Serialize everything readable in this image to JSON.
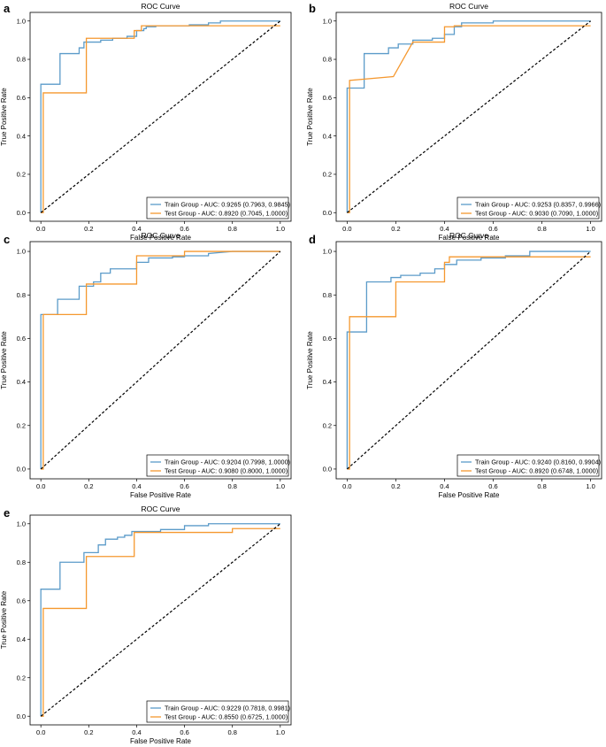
{
  "chart_data": [
    {
      "panel": "a",
      "type": "line",
      "title": "ROC Curve",
      "xlabel": "False Positive Rate",
      "ylabel": "True Positive Rate",
      "xlim": [
        0,
        1
      ],
      "ylim": [
        0,
        1
      ],
      "ticks": [
        "0.0",
        "0.2",
        "0.4",
        "0.6",
        "0.8",
        "1.0"
      ],
      "legend_position": "lower-right",
      "series": [
        {
          "name": "Train Group",
          "label": "Train Group - AUC: 0.9265 (0.7963, 0.9845)",
          "color": "#5b9bc9",
          "x": [
            0,
            0,
            0.08,
            0.08,
            0.16,
            0.16,
            0.18,
            0.18,
            0.25,
            0.25,
            0.3,
            0.3,
            0.36,
            0.36,
            0.4,
            0.4,
            0.43,
            0.43,
            0.44,
            0.44,
            0.48,
            0.48,
            0.62,
            0.62,
            0.7,
            0.7,
            0.75,
            0.75,
            1.0
          ],
          "y": [
            0,
            0.67,
            0.67,
            0.83,
            0.83,
            0.86,
            0.86,
            0.89,
            0.89,
            0.9,
            0.9,
            0.91,
            0.91,
            0.92,
            0.92,
            0.95,
            0.95,
            0.96,
            0.96,
            0.97,
            0.97,
            0.975,
            0.975,
            0.98,
            0.98,
            0.99,
            0.99,
            1.0,
            1.0
          ]
        },
        {
          "name": "Test Group",
          "label": "Test Group - AUC: 0.8920 (0.7045, 1.0000)",
          "color": "#f5982f",
          "x": [
            0,
            0.01,
            0.01,
            0.19,
            0.19,
            0.39,
            0.39,
            0.42,
            0.42,
            1.0
          ],
          "y": [
            0,
            0,
            0.625,
            0.625,
            0.91,
            0.91,
            0.95,
            0.95,
            0.975,
            0.975
          ]
        },
        {
          "name": "Chance",
          "label": "",
          "color": "#000000",
          "dashed": true,
          "x": [
            0,
            1
          ],
          "y": [
            0,
            1
          ]
        }
      ]
    },
    {
      "panel": "b",
      "type": "line",
      "title": "ROC Curve",
      "xlabel": "False Positive Rate",
      "ylabel": "True Positive Rate",
      "xlim": [
        0,
        1
      ],
      "ylim": [
        0,
        1
      ],
      "ticks": [
        "0.0",
        "0.2",
        "0.4",
        "0.6",
        "0.8",
        "1.0"
      ],
      "legend_position": "lower-right",
      "series": [
        {
          "name": "Train Group",
          "label": "Train Group - AUC: 0.9253 (0.8357, 0.9966)",
          "color": "#5b9bc9",
          "x": [
            0,
            0,
            0.07,
            0.07,
            0.13,
            0.13,
            0.17,
            0.17,
            0.21,
            0.21,
            0.27,
            0.27,
            0.35,
            0.35,
            0.4,
            0.4,
            0.44,
            0.44,
            0.47,
            0.47,
            0.6,
            0.6,
            0.95,
            1.0
          ],
          "y": [
            0,
            0.65,
            0.65,
            0.83,
            0.83,
            0.83,
            0.83,
            0.86,
            0.86,
            0.88,
            0.88,
            0.9,
            0.9,
            0.91,
            0.91,
            0.93,
            0.93,
            0.97,
            0.97,
            0.99,
            0.99,
            1.0,
            1.0,
            1.0
          ]
        },
        {
          "name": "Test Group",
          "label": "Test Group - AUC: 0.9030 (0.7090, 1.0000)",
          "color": "#f5982f",
          "x": [
            0,
            0.01,
            0.01,
            0.19,
            0.19,
            0.27,
            0.27,
            0.4,
            0.4,
            0.44,
            0.44,
            1.0
          ],
          "y": [
            0,
            0,
            0.69,
            0.71,
            0.71,
            0.89,
            0.89,
            0.89,
            0.97,
            0.97,
            0.975,
            0.975
          ]
        },
        {
          "name": "Chance",
          "label": "",
          "color": "#000000",
          "dashed": true,
          "x": [
            0,
            1
          ],
          "y": [
            0,
            1
          ]
        }
      ]
    },
    {
      "panel": "c",
      "type": "line",
      "title": "ROC Curve",
      "xlabel": "False Positive Rate",
      "ylabel": "True Positive Rate",
      "xlim": [
        0,
        1
      ],
      "ylim": [
        0,
        1
      ],
      "ticks": [
        "0.0",
        "0.2",
        "0.4",
        "0.6",
        "0.8",
        "1.0"
      ],
      "legend_position": "lower-right",
      "series": [
        {
          "name": "Train Group",
          "label": "Train Group - AUC: 0.9204 (0.7998, 1.0000)",
          "color": "#5b9bc9",
          "x": [
            0,
            0,
            0.07,
            0.07,
            0.16,
            0.16,
            0.22,
            0.22,
            0.25,
            0.25,
            0.29,
            0.29,
            0.4,
            0.4,
            0.45,
            0.45,
            0.55,
            0.55,
            0.6,
            0.6,
            0.7,
            0.7,
            0.8,
            1.0
          ],
          "y": [
            0,
            0.71,
            0.71,
            0.78,
            0.78,
            0.84,
            0.84,
            0.86,
            0.86,
            0.9,
            0.9,
            0.92,
            0.92,
            0.95,
            0.95,
            0.97,
            0.97,
            0.975,
            0.975,
            0.98,
            0.98,
            0.99,
            1.0,
            1.0
          ]
        },
        {
          "name": "Test Group",
          "label": "Test Group - AUC: 0.9080 (0.8000, 1.0000)",
          "color": "#f5982f",
          "x": [
            0,
            0.01,
            0.01,
            0.19,
            0.19,
            0.4,
            0.4,
            0.6,
            0.6,
            1.0
          ],
          "y": [
            0,
            0,
            0.71,
            0.71,
            0.85,
            0.85,
            0.98,
            0.98,
            1.0,
            1.0
          ]
        },
        {
          "name": "Chance",
          "label": "",
          "color": "#000000",
          "dashed": true,
          "x": [
            0,
            1
          ],
          "y": [
            0,
            1
          ]
        }
      ]
    },
    {
      "panel": "d",
      "type": "line",
      "title": "ROC Curve",
      "xlabel": "False Positive Rate",
      "ylabel": "True Positive Rate",
      "xlim": [
        0,
        1
      ],
      "ylim": [
        0,
        1
      ],
      "ticks": [
        "0.0",
        "0.2",
        "0.4",
        "0.6",
        "0.8",
        "1.0"
      ],
      "legend_position": "lower-right",
      "series": [
        {
          "name": "Train Group",
          "label": "Train Group - AUC: 0.9240 (0.8160, 0.9904)",
          "color": "#5b9bc9",
          "x": [
            0,
            0,
            0.08,
            0.08,
            0.18,
            0.18,
            0.22,
            0.22,
            0.3,
            0.3,
            0.36,
            0.36,
            0.4,
            0.4,
            0.45,
            0.45,
            0.55,
            0.55,
            0.65,
            0.65,
            0.75,
            0.75,
            1.0
          ],
          "y": [
            0,
            0.63,
            0.63,
            0.86,
            0.86,
            0.88,
            0.88,
            0.89,
            0.89,
            0.9,
            0.9,
            0.92,
            0.92,
            0.94,
            0.94,
            0.96,
            0.96,
            0.97,
            0.97,
            0.98,
            0.98,
            1.0,
            1.0
          ]
        },
        {
          "name": "Test Group",
          "label": "Test Group - AUC: 0.8920 (0.6748, 1.0000)",
          "color": "#f5982f",
          "x": [
            0,
            0.01,
            0.01,
            0.2,
            0.2,
            0.4,
            0.4,
            0.42,
            0.42,
            1.0
          ],
          "y": [
            0,
            0,
            0.7,
            0.7,
            0.86,
            0.86,
            0.95,
            0.95,
            0.975,
            0.975
          ]
        },
        {
          "name": "Chance",
          "label": "",
          "color": "#000000",
          "dashed": true,
          "x": [
            0,
            1
          ],
          "y": [
            0,
            1
          ]
        }
      ]
    },
    {
      "panel": "e",
      "type": "line",
      "title": "ROC Curve",
      "xlabel": "False Positive Rate",
      "ylabel": "True Positive Rate",
      "xlim": [
        0,
        1
      ],
      "ylim": [
        0,
        1
      ],
      "ticks": [
        "0.0",
        "0.2",
        "0.4",
        "0.6",
        "0.8",
        "1.0"
      ],
      "legend_position": "lower-right",
      "series": [
        {
          "name": "Train Group",
          "label": "Train Group - AUC: 0.9229 (0.7818, 0.9981)",
          "color": "#5b9bc9",
          "x": [
            0,
            0,
            0.08,
            0.08,
            0.18,
            0.18,
            0.24,
            0.24,
            0.27,
            0.27,
            0.32,
            0.32,
            0.35,
            0.35,
            0.38,
            0.38,
            0.5,
            0.5,
            0.6,
            0.6,
            0.7,
            0.7,
            1.0
          ],
          "y": [
            0,
            0.66,
            0.66,
            0.8,
            0.8,
            0.85,
            0.85,
            0.89,
            0.89,
            0.92,
            0.92,
            0.93,
            0.93,
            0.94,
            0.94,
            0.96,
            0.96,
            0.97,
            0.97,
            0.99,
            0.99,
            1.0,
            1.0
          ]
        },
        {
          "name": "Test Group",
          "label": "Test Group - AUC: 0.8550 (0.6725, 1.0000)",
          "color": "#f5982f",
          "x": [
            0,
            0.01,
            0.01,
            0.19,
            0.19,
            0.39,
            0.39,
            0.8,
            0.8,
            1.0
          ],
          "y": [
            0,
            0,
            0.56,
            0.56,
            0.83,
            0.83,
            0.955,
            0.955,
            0.975,
            0.975
          ]
        },
        {
          "name": "Chance",
          "label": "",
          "color": "#000000",
          "dashed": true,
          "x": [
            0,
            1
          ],
          "y": [
            0,
            1
          ]
        }
      ]
    }
  ]
}
